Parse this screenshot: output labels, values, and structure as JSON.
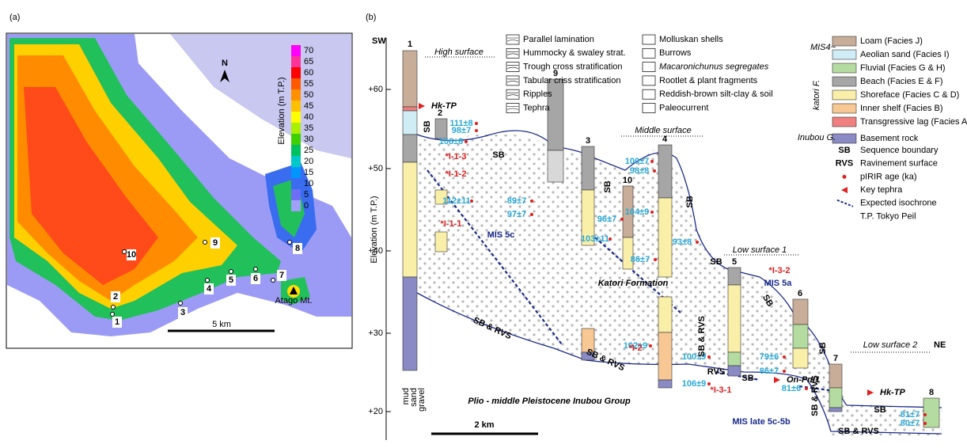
{
  "panel_a": {
    "label": "(a)",
    "legend_title": "Elevation (m T.P.)",
    "legend_values": [
      "70",
      "65",
      "60",
      "55",
      "50",
      "45",
      "40",
      "35",
      "30",
      "25",
      "20",
      "15",
      "10",
      "5",
      "0"
    ],
    "north": "N",
    "sites": [
      "1",
      "2",
      "3",
      "4",
      "5",
      "6",
      "7",
      "8",
      "9",
      "10"
    ],
    "mountain": "Atago Mt.",
    "scale": "5 km"
  },
  "panel_b": {
    "label": "(b)",
    "sw": "SW",
    "ne": "NE",
    "y_axis_label": "Elevation (m T.P.)",
    "y_ticks": [
      "+60",
      "+50",
      "+40",
      "+30",
      "+20"
    ],
    "surfaces": [
      "High surface",
      "Middle surface",
      "Low surface 1",
      "Low surface 2"
    ],
    "columns": [
      "1",
      "2",
      "9",
      "3",
      "10",
      "4",
      "5",
      "6",
      "7",
      "8"
    ],
    "ages": [
      "111±8",
      "98±7",
      "106±8",
      "112±11",
      "89±7",
      "97±7",
      "103±11",
      "96±7",
      "104±9",
      "100±7",
      "98±8",
      "93±8",
      "86±7",
      "102±9",
      "100±9",
      "106±9",
      "79±6",
      "86±7",
      "81±6",
      "81±7",
      "80±7"
    ],
    "tephra": [
      "Hk-TP",
      "On-Pm1",
      "Hk-TP"
    ],
    "samples": [
      "*I-1-3",
      "*I-1-2",
      "*I-1-1",
      "*I-2",
      "*I-3-1",
      "*I-3-2"
    ],
    "mis": [
      "MIS 5c",
      "MIS 5a",
      "MIS late 5c-5b"
    ],
    "formation": "Katori Formation",
    "group": "Plio - middle Pleistocene Inubou Group",
    "boundaries": [
      "SB",
      "SB",
      "SB",
      "SB",
      "SB",
      "SB",
      "SB & RVS",
      "SB & RVS",
      "SB & RVS",
      "RVS",
      "SB",
      "SB",
      "SB & RVS",
      "SB & RVS",
      "SB"
    ],
    "grain": [
      "mud",
      "sand",
      "gravel"
    ],
    "scale": "2 km",
    "legend_structures": [
      "Parallel lamination",
      "Hummocky & swaley strat.",
      "Trough cross stratification",
      "Tabular criss stratification",
      "Ripples",
      "Tephra"
    ],
    "legend_features": [
      "Molluskan shells",
      "Burrows",
      "Macaronichunus segregates",
      "Rootlet & plant fragments",
      "Reddish-brown silt-clay & soil",
      "Paleocurrent"
    ],
    "legend_facies": [
      "Loam (Facies J)",
      "Aeolian sand (Facies I)",
      "Fluvial (Facies G & H)",
      "Beach (Facies E & F)",
      "Shoreface (Facies C & D)",
      "Inner shelf (Facies B)",
      "Transgressive lag (Facies A)",
      "Basement rock"
    ],
    "legend_groups": [
      "MIS4~",
      "katori F.",
      "Inubou G."
    ],
    "legend_symbols": [
      {
        "abbr": "SB",
        "text": "Sequence boundary"
      },
      {
        "abbr": "RVS",
        "text": "Ravinement surface"
      },
      {
        "text": "pIRIR age (ka)"
      },
      {
        "text": "Key tephra"
      },
      {
        "text": "Expected isochrone"
      },
      {
        "text": "T.P. Tokyo Peil"
      }
    ]
  }
}
